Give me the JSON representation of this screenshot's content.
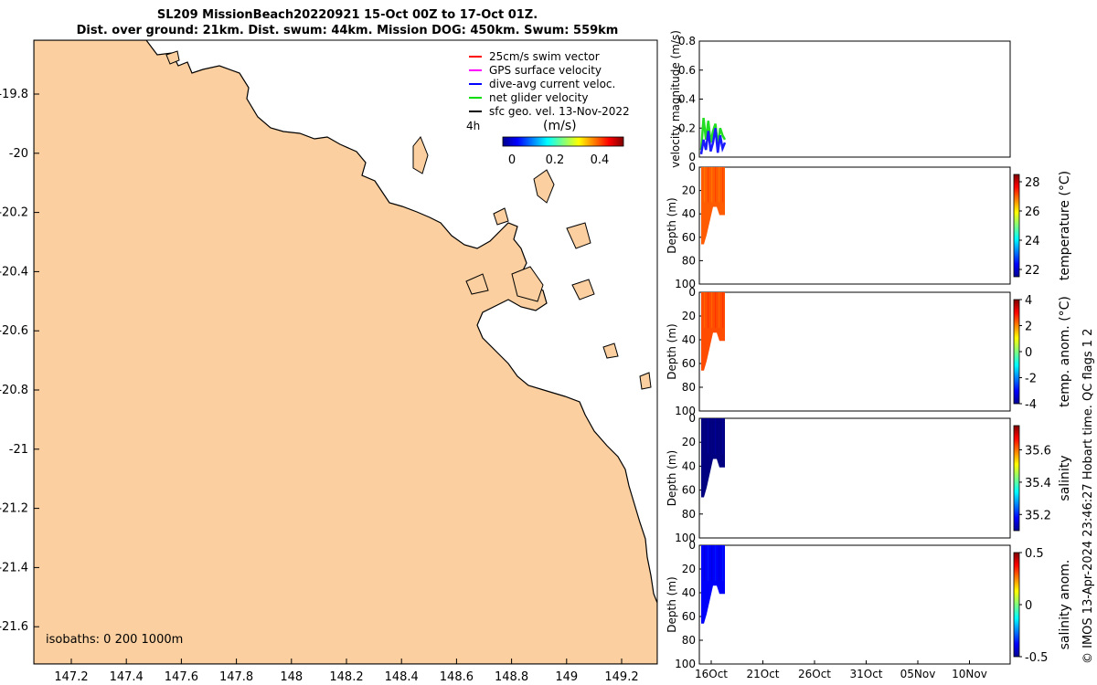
{
  "title": {
    "line1": "SL209 MissionBeach20220921 15-Oct 00Z to 17-Oct 01Z.",
    "line2": "Dist. over ground: 21km. Dist. swum: 44km. Mission DOG: 450km. Swum: 559km"
  },
  "map": {
    "legend": [
      {
        "label": "25cm/s swim vector",
        "color": "#ff0000"
      },
      {
        "label": "GPS surface velocity",
        "color": "#ff00ff"
      },
      {
        "label": "dive-avg current veloc.",
        "color": "#0000ff"
      },
      {
        "label": "net glider velocity",
        "color": "#00dd00"
      },
      {
        "label": "sfc geo. vel. 13-Nov-2022",
        "color": "#000000"
      }
    ],
    "time_label": "4h",
    "colorbar_unit": "(m/s)",
    "colorbar_ticks": [
      "0",
      "0.2",
      "0.4"
    ],
    "isobaths": "isobaths: 0   200  1000m",
    "x_ticks": [
      "147.2",
      "147.4",
      "147.6",
      "147.8",
      "148",
      "148.2",
      "148.4",
      "148.6",
      "148.8",
      "149",
      "149.2"
    ],
    "y_ticks": [
      "-19.8",
      "-20",
      "-20.2",
      "-20.4",
      "-20.6",
      "-20.8",
      "-21",
      "-21.2",
      "-21.4",
      "-21.6"
    ],
    "land_color": "#fbcf9f"
  },
  "chart_data": [
    {
      "type": "line",
      "panel": "velocity",
      "ylabel": "velocity magnitude (m/s)",
      "ylim": [
        0,
        0.8
      ],
      "y_ticks": [
        "0",
        "0.2",
        "0.4",
        "0.6",
        "0.8"
      ],
      "series": [
        {
          "name": "net glider velocity",
          "color": "#22dd22",
          "values": [
            0.05,
            0.27,
            0.12,
            0.25,
            0.1,
            0.18,
            0.23,
            0.08,
            0.2,
            0.15,
            0.12
          ]
        },
        {
          "name": "dive-avg current veloc.",
          "color": "#1a1aff",
          "values": [
            0.02,
            0.12,
            0.05,
            0.18,
            0.04,
            0.1,
            0.2,
            0.03,
            0.15,
            0.06,
            0.1
          ]
        }
      ]
    },
    {
      "type": "heatmap",
      "panel": "temperature",
      "ylabel": "Depth (m)",
      "colorbar_label": "temperature (°C)",
      "colorbar_ticks": [
        "22",
        "24",
        "26",
        "28"
      ],
      "color_range": [
        21.5,
        28.5
      ],
      "typical_value": 27.0,
      "depth_ticks": [
        "0",
        "20",
        "40",
        "60",
        "80",
        "100"
      ]
    },
    {
      "type": "heatmap",
      "panel": "temp_anom",
      "ylabel": "Depth (m)",
      "colorbar_label": "temp. anom. (°C)",
      "colorbar_ticks": [
        "4",
        "2",
        "0",
        "-2",
        "-4"
      ],
      "color_range": [
        -4,
        4
      ],
      "typical_value": 2.4,
      "depth_ticks": [
        "0",
        "20",
        "40",
        "60",
        "80",
        "100"
      ]
    },
    {
      "type": "heatmap",
      "panel": "salinity",
      "ylabel": "Depth (m)",
      "colorbar_label": "salinity",
      "colorbar_ticks": [
        "35.6",
        "35.4",
        "35.2"
      ],
      "color_range": [
        35.1,
        35.75
      ],
      "typical_value": 35.1,
      "depth_ticks": [
        "0",
        "20",
        "40",
        "60",
        "80",
        "100"
      ]
    },
    {
      "type": "heatmap",
      "panel": "sal_anom",
      "ylabel": "Depth (m)",
      "colorbar_label": "salinity anom.",
      "colorbar_ticks": [
        "0.5",
        "0",
        "-0.5"
      ],
      "color_range": [
        -0.5,
        0.5
      ],
      "typical_value": -0.38,
      "depth_ticks": [
        "0",
        "20",
        "40",
        "60",
        "80",
        "100"
      ],
      "x_ticks": [
        "16Oct",
        "21Oct",
        "26Oct",
        "31Oct",
        "05Nov",
        "10Nov"
      ]
    }
  ],
  "credit": "© IMOS 13-Apr-2024 23:46:27 Hobart time. QC flags 1  2"
}
